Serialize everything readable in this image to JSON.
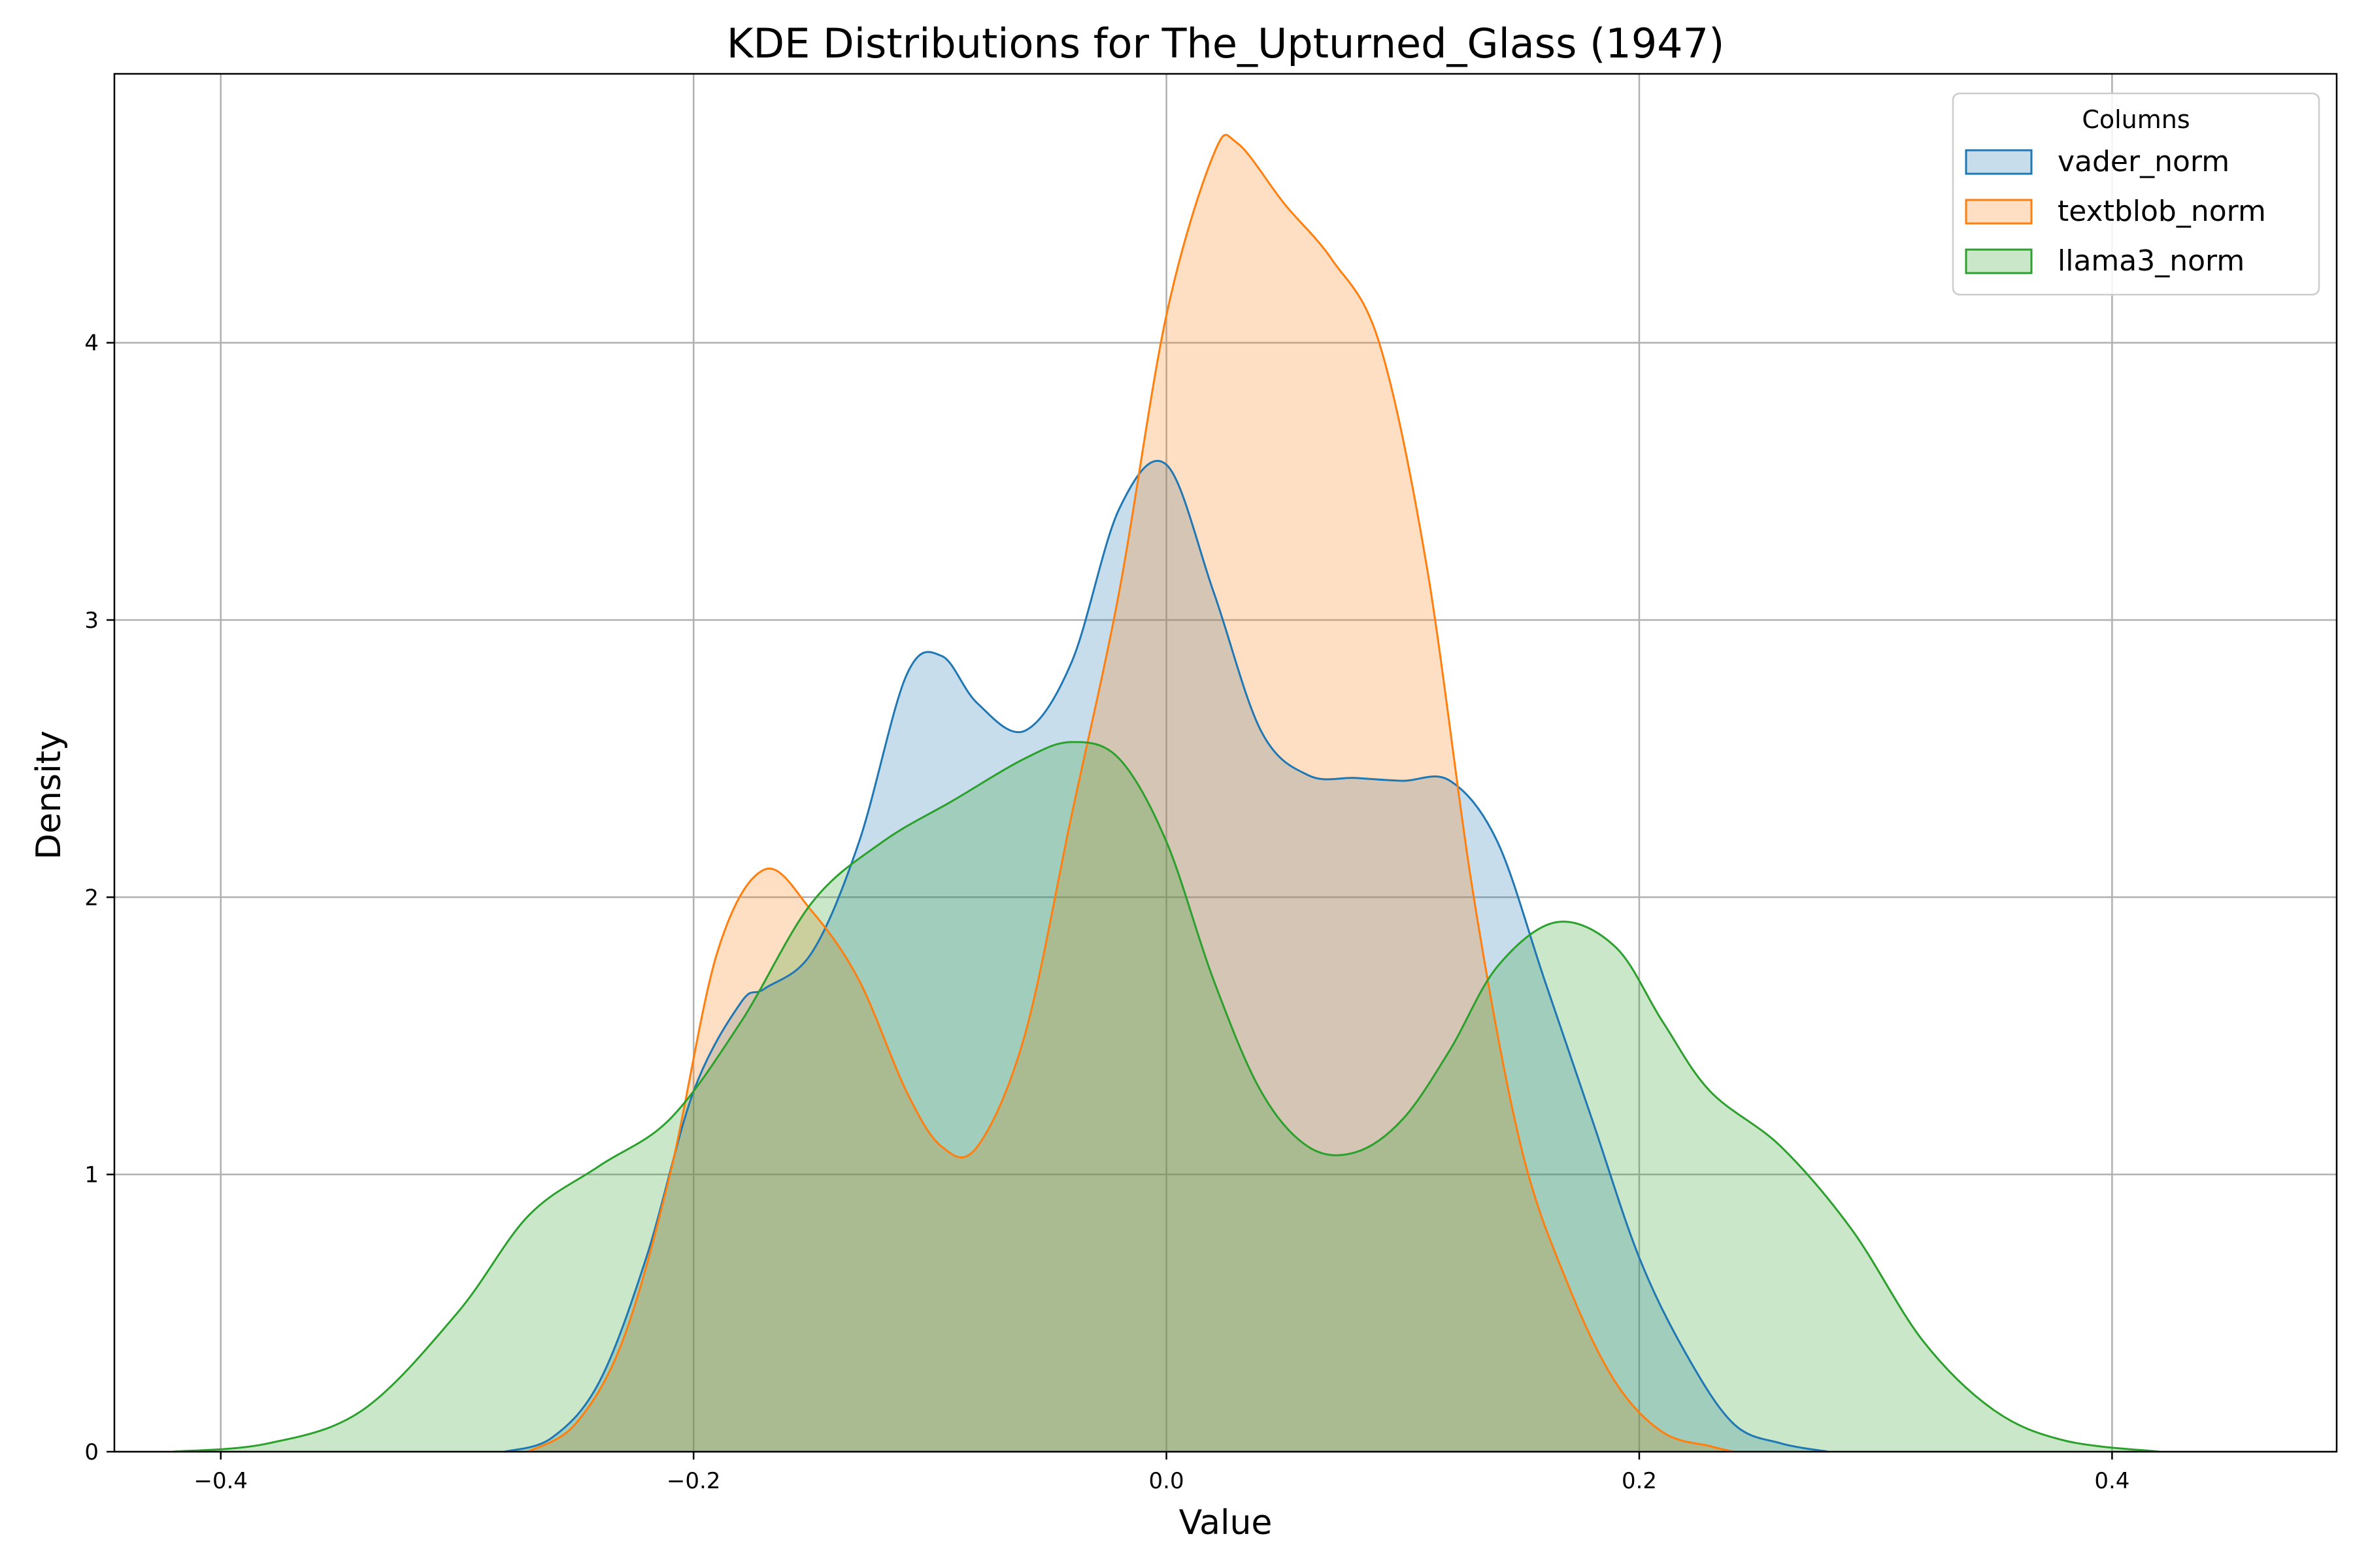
{
  "chart_data": {
    "type": "area",
    "title": "KDE Distributions for The_Upturned_Glass (1947)",
    "xlabel": "Value",
    "ylabel": "Density",
    "xlim": [
      -0.4,
      0.4
    ],
    "ylim": [
      0,
      4.8
    ],
    "x_ticks": [
      -0.4,
      -0.2,
      0.0,
      0.2,
      0.4
    ],
    "y_ticks": [
      0,
      1,
      2,
      3,
      4
    ],
    "grid": true,
    "legend": {
      "title": "Columns",
      "placement": "top-right"
    },
    "series": [
      {
        "name": "vader_norm",
        "color": "#1f77b4",
        "x": [
          -0.28,
          -0.26,
          -0.24,
          -0.22,
          -0.2,
          -0.18,
          -0.17,
          -0.15,
          -0.13,
          -0.11,
          -0.095,
          -0.08,
          -0.06,
          -0.04,
          -0.02,
          0.0,
          0.02,
          0.04,
          0.06,
          0.08,
          0.1,
          0.12,
          0.14,
          0.16,
          0.18,
          0.2,
          0.22,
          0.24,
          0.26,
          0.28
        ],
        "y": [
          0.0,
          0.05,
          0.25,
          0.7,
          1.3,
          1.62,
          1.67,
          1.8,
          2.2,
          2.8,
          2.87,
          2.7,
          2.6,
          2.85,
          3.4,
          3.56,
          3.1,
          2.6,
          2.44,
          2.43,
          2.42,
          2.42,
          2.2,
          1.7,
          1.2,
          0.7,
          0.35,
          0.1,
          0.03,
          0.0
        ]
      },
      {
        "name": "textblob_norm",
        "color": "#ff7f0e",
        "x": [
          -0.27,
          -0.25,
          -0.23,
          -0.21,
          -0.19,
          -0.17,
          -0.15,
          -0.13,
          -0.11,
          -0.095,
          -0.08,
          -0.06,
          -0.04,
          -0.02,
          0.0,
          0.02,
          0.03,
          0.05,
          0.07,
          0.09,
          0.11,
          0.13,
          0.15,
          0.17,
          0.19,
          0.21,
          0.23,
          0.24
        ],
        "y": [
          0.0,
          0.1,
          0.4,
          1.0,
          1.8,
          2.1,
          1.95,
          1.7,
          1.3,
          1.1,
          1.1,
          1.5,
          2.3,
          3.1,
          4.1,
          4.68,
          4.72,
          4.5,
          4.3,
          4.0,
          3.2,
          2.0,
          1.1,
          0.6,
          0.25,
          0.07,
          0.02,
          0.0
        ]
      },
      {
        "name": "llama3_norm",
        "color": "#2ca02c",
        "x": [
          -0.42,
          -0.38,
          -0.34,
          -0.3,
          -0.27,
          -0.24,
          -0.21,
          -0.18,
          -0.15,
          -0.12,
          -0.09,
          -0.06,
          -0.04,
          -0.02,
          0.0,
          0.02,
          0.04,
          0.06,
          0.08,
          0.1,
          0.12,
          0.14,
          0.165,
          0.19,
          0.21,
          0.23,
          0.26,
          0.29,
          0.32,
          0.35,
          0.38,
          0.42
        ],
        "y": [
          0.0,
          0.03,
          0.15,
          0.5,
          0.85,
          1.03,
          1.2,
          1.55,
          1.98,
          2.2,
          2.35,
          2.5,
          2.56,
          2.5,
          2.2,
          1.7,
          1.3,
          1.1,
          1.08,
          1.2,
          1.45,
          1.75,
          1.91,
          1.82,
          1.55,
          1.3,
          1.1,
          0.8,
          0.4,
          0.15,
          0.04,
          0.0
        ]
      }
    ]
  }
}
